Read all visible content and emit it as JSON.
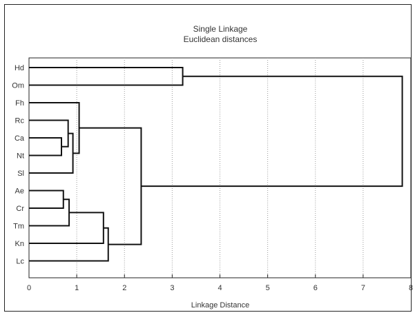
{
  "chart_data": {
    "type": "dendrogram",
    "title": "Single Linkage",
    "subtitle": "Euclidean distances",
    "xlabel": "Linkage Distance",
    "xlim": [
      0,
      8
    ],
    "xticks": [
      0,
      1,
      2,
      3,
      4,
      5,
      6,
      7,
      8
    ],
    "grid": "vertical dotted",
    "leaves": [
      "Hd",
      "Om",
      "Fh",
      "Rc",
      "Ca",
      "Nt",
      "Sl",
      "Ae",
      "Cr",
      "Tm",
      "Kn",
      "Lc"
    ],
    "merges": [
      {
        "a": "Ca",
        "b": "Nt",
        "height": 0.68
      },
      {
        "a": "Ae",
        "b": "Cr",
        "height": 0.72
      },
      {
        "a": "Rc",
        "b": "Ca+Nt",
        "height": 0.82
      },
      {
        "a": "Rc+Ca+Nt",
        "b": "Sl",
        "height": 0.92
      },
      {
        "a": "Ae+Cr",
        "b": "Tm",
        "height": 0.84
      },
      {
        "a": "Fh",
        "b": "Rc+Ca+Nt+Sl",
        "height": 1.05
      },
      {
        "a": "Ae+Cr+Tm",
        "b": "Kn",
        "height": 1.56
      },
      {
        "a": "Ae+Cr+Tm+Kn",
        "b": "Lc",
        "height": 1.66
      },
      {
        "a": "Fh+Rc+Ca+Nt+Sl",
        "b": "Ae+Cr+Tm+Kn+Lc",
        "height": 2.35
      },
      {
        "a": "Hd",
        "b": "Om",
        "height": 3.22
      },
      {
        "a": "Hd+Om",
        "b": "Fh+Rc+Ca+Nt+Sl+Ae+Cr+Tm+Kn+Lc",
        "height": 7.82
      }
    ]
  }
}
